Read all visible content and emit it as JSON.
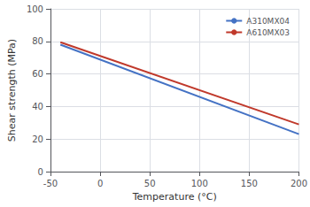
{
  "chart_data": {
    "type": "line",
    "xlabel": "Temperature (°C)",
    "ylabel": "Shear strength (MPa)",
    "xlim": [
      -50,
      200
    ],
    "ylim": [
      0,
      100
    ],
    "xticks": [
      -50,
      0,
      50,
      100,
      150,
      200
    ],
    "yticks": [
      0,
      20,
      40,
      60,
      80,
      100
    ],
    "series": [
      {
        "name": "A310MX04",
        "color": "#4472C4",
        "x": [
          -40,
          200
        ],
        "values": [
          78,
          23
        ]
      },
      {
        "name": "A610MX03",
        "color": "#C0392B",
        "x": [
          -40,
          200
        ],
        "values": [
          79.5,
          29
        ]
      }
    ],
    "grid": true,
    "legend": "upper right"
  }
}
